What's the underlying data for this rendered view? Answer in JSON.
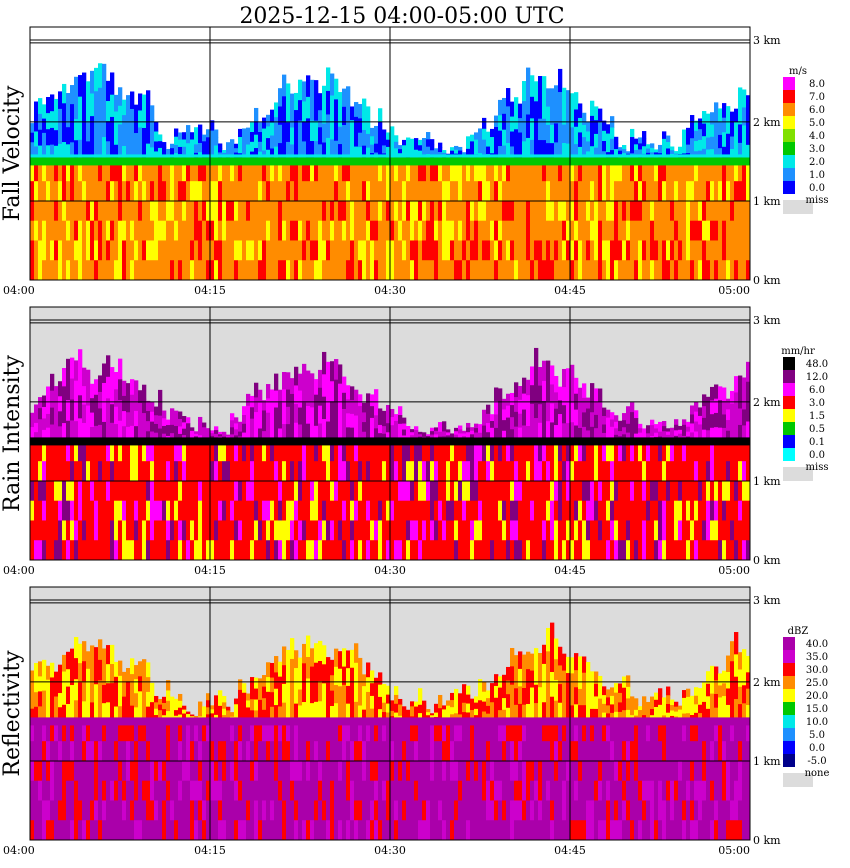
{
  "title": "2025-12-15   04:00-05:00 UTC",
  "colors": {
    "missing": "#dcdcdc",
    "grid": "#000000"
  },
  "chart_data": [
    {
      "type": "heatmap",
      "panel": "Fall Velocity",
      "ylabel": "Fall Velocity",
      "x_ticks": [
        "04:00",
        "04:15",
        "04:30",
        "04:45",
        "05:00"
      ],
      "y_ticks": [
        "0 km",
        "1 km",
        "2 km",
        "3 km"
      ],
      "ylim_km": [
        0,
        3.2
      ],
      "bright_band_km": 1.5,
      "legend": {
        "unit": "m/s",
        "labels": [
          "8.0",
          "7.0",
          "6.0",
          "5.0",
          "4.0",
          "3.0",
          "2.0",
          "1.0",
          "0.0"
        ],
        "colors": [
          "#ff00ff",
          "#ff0000",
          "#ff8c00",
          "#ffff00",
          "#80e000",
          "#00c800",
          "#00e8e8",
          "#1e90ff",
          "#0000ff"
        ],
        "missing_label": "miss"
      },
      "below_band_colors": [
        "#ff8c00",
        "#ffff00",
        "#ff0000"
      ],
      "above_band_colors": [
        "#1e90ff",
        "#0000ff",
        "#00e8e8"
      ],
      "background": "#ffffff"
    },
    {
      "type": "heatmap",
      "panel": "Rain Intensity",
      "ylabel": "Rain Intensity",
      "x_ticks": [
        "04:00",
        "04:15",
        "04:30",
        "04:45",
        "05:00"
      ],
      "y_ticks": [
        "0 km",
        "1 km",
        "2 km",
        "3 km"
      ],
      "ylim_km": [
        0,
        3.2
      ],
      "bright_band_km": 1.5,
      "legend": {
        "unit": "mm/hr",
        "labels": [
          "48.0",
          "12.0",
          "6.0",
          "3.0",
          "1.5",
          "0.5",
          "0.1",
          "0.0"
        ],
        "colors": [
          "#000000",
          "#800080",
          "#ff00ff",
          "#ff0000",
          "#ffff00",
          "#00c800",
          "#0000ff",
          "#00ffff"
        ],
        "missing_label": "miss"
      },
      "below_band_colors": [
        "#ff0000",
        "#ff00ff",
        "#ffff00",
        "#800080"
      ],
      "above_band_colors": [
        "#800080",
        "#ff00ff",
        "#cc00cc"
      ],
      "background": "#dcdcdc"
    },
    {
      "type": "heatmap",
      "panel": "Reflectivity",
      "ylabel": "Reflectivity",
      "x_ticks": [
        "04:00",
        "04:15",
        "04:30",
        "04:45",
        "05:00"
      ],
      "y_ticks": [
        "0 km",
        "1 km",
        "2 km",
        "3 km"
      ],
      "ylim_km": [
        0,
        3.2
      ],
      "bright_band_km": 1.5,
      "legend": {
        "unit": "dBZ",
        "labels": [
          "40.0",
          "35.0",
          "30.0",
          "25.0",
          "20.0",
          "15.0",
          "10.0",
          "5.0",
          "0.0",
          "-5.0"
        ],
        "colors": [
          "#aa00aa",
          "#cc00cc",
          "#ff0000",
          "#ff8c00",
          "#ffff00",
          "#00c800",
          "#00e8e8",
          "#1e90ff",
          "#0000ff",
          "#00008b"
        ],
        "missing_label": "none"
      },
      "below_band_colors": [
        "#aa00aa",
        "#ff0000",
        "#cc00cc"
      ],
      "above_band_colors": [
        "#ff0000",
        "#ff8c00",
        "#ffff00"
      ],
      "background": "#dcdcdc"
    }
  ]
}
